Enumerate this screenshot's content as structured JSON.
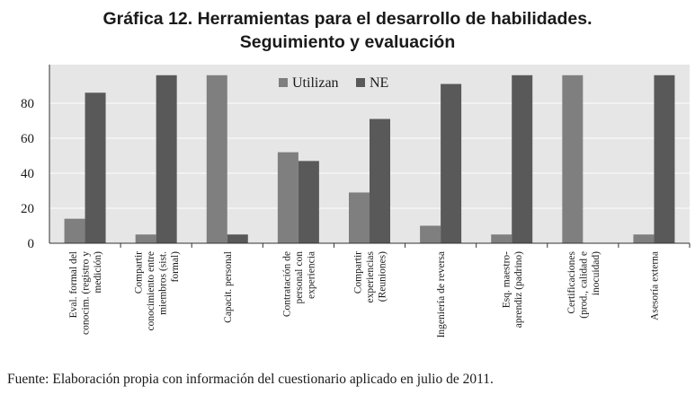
{
  "title_lines": [
    "Gráfica 12. Herramientas para el desarrollo de habilidades.",
    "Seguimiento y evaluación"
  ],
  "source": "Fuente: Elaboración propia con información del cuestionario aplicado en julio de 2011.",
  "colors": {
    "background": "#e6e6e6",
    "utilizan": "#7f7f7f",
    "ne": "#595959",
    "grid": "#ffffff",
    "axis": "#333333"
  },
  "chart_data": {
    "type": "bar",
    "title": "Gráfica 12. Herramientas para el desarrollo de habilidades. Seguimiento y evaluación",
    "ylim": [
      0,
      96
    ],
    "yticks": [
      0,
      20,
      40,
      60,
      80
    ],
    "grid": true,
    "legend_position": "top-center",
    "categories": [
      [
        "Eval. formal del",
        "conocim. (registro y",
        "medición)"
      ],
      [
        "Compartir",
        "conocimiento entre",
        "miembros (sist.",
        "formal)"
      ],
      [
        "Capacit. personal"
      ],
      [
        "Contratación de",
        "personal con",
        "experiencia"
      ],
      [
        "Compartir",
        "experiencias",
        "(Reuniones)"
      ],
      [
        "Ingeniería de reversa"
      ],
      [
        "Esq. maestro-",
        "aprendiz (padrino)"
      ],
      [
        "Certificaciones",
        "(prod., calidad e",
        "inocuidad)"
      ],
      [
        "Asesoría externa"
      ]
    ],
    "series": [
      {
        "name": "Utilizan",
        "values": [
          14,
          5,
          96,
          52,
          29,
          10,
          5,
          96,
          5
        ]
      },
      {
        "name": "NE",
        "values": [
          86,
          96,
          5,
          47,
          71,
          91,
          96,
          0,
          96
        ]
      }
    ]
  }
}
